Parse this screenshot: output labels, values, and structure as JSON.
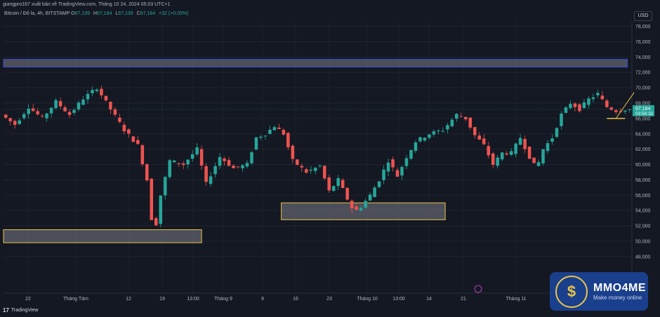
{
  "header": {
    "published": "giangpro167 xuất bản về TradingView.com, Tháng 10 24, 2024 05:03 UTC+1",
    "symbol": "Bitcoin / Đô la, 4h, BITSTAMP",
    "open_label": "O",
    "open": "67,139",
    "high_label": "H",
    "high": "67,184",
    "low_label": "L",
    "low": "67,139",
    "close_label": "C",
    "close": "67,184",
    "change": "+32 (+0.05%)"
  },
  "currency_button": "USD",
  "branding": {
    "tradingview": "TradingView",
    "tv_mark": "17"
  },
  "watermark": {
    "title": "MMO4ME",
    "subtitle": "Make money online",
    "symbol": "$"
  },
  "colors": {
    "up": "#26a69a",
    "down": "#ef5350",
    "zone_border": "#e8c14a",
    "zone_fill": "#7a7d87",
    "resistance_border": "#3d4fd8",
    "arrow": "#e8c14a",
    "background": "#141822"
  },
  "chart_data": {
    "type": "candlestick",
    "y_unit": "USD",
    "yticks": [
      48000,
      50000,
      52000,
      54000,
      56000,
      58000,
      60000,
      62000,
      64000,
      66000,
      68000,
      70000,
      72000,
      74000,
      76000,
      78000
    ],
    "ytick_labels": [
      "48,000",
      "50,000",
      "52,000",
      "54,000",
      "56,000",
      "58,000",
      "60,000",
      "62,000",
      "64,000",
      "66,000",
      "68,000",
      "70,000",
      "72,000",
      "74,000",
      "76,000",
      "78,000"
    ],
    "xtick_labels": [
      "22",
      "Tháng Tám",
      "12",
      "19",
      "13:00",
      "Tháng 9",
      "9",
      "16",
      "23",
      "Tháng 10",
      "13:00",
      "14",
      "21",
      "Tháng 11"
    ],
    "last_price": "67,184",
    "countdown": "03:56:32",
    "path": [
      [
        0,
        66500
      ],
      [
        3,
        65200
      ],
      [
        6,
        67500
      ],
      [
        9,
        66000
      ],
      [
        12,
        68200
      ],
      [
        15,
        66500
      ],
      [
        18,
        68600
      ],
      [
        21,
        70000
      ],
      [
        24,
        67200
      ],
      [
        27,
        64500
      ],
      [
        30,
        62500
      ],
      [
        32,
        58000
      ],
      [
        33.5,
        50400
      ],
      [
        35,
        56000
      ],
      [
        37,
        60500
      ],
      [
        40,
        60000
      ],
      [
        43,
        62000
      ],
      [
        45,
        57500
      ],
      [
        48,
        61000
      ],
      [
        51,
        59500
      ],
      [
        54,
        60000
      ],
      [
        56,
        63500
      ],
      [
        58,
        64000
      ],
      [
        60,
        65000
      ],
      [
        62,
        64000
      ],
      [
        64,
        60500
      ],
      [
        67,
        59000
      ],
      [
        70,
        59800
      ],
      [
        72,
        56500
      ],
      [
        74,
        58000
      ],
      [
        76,
        55500
      ],
      [
        77.5,
        53800
      ],
      [
        79,
        54500
      ],
      [
        81,
        56000
      ],
      [
        83,
        58000
      ],
      [
        85,
        60500
      ],
      [
        87,
        58500
      ],
      [
        89,
        61000
      ],
      [
        91,
        63000
      ],
      [
        94,
        64000
      ],
      [
        97,
        64500
      ],
      [
        100,
        66500
      ],
      [
        102,
        66000
      ],
      [
        104,
        63800
      ],
      [
        106,
        62500
      ],
      [
        108,
        60000
      ],
      [
        110,
        61500
      ],
      [
        112,
        61500
      ],
      [
        114,
        63500
      ],
      [
        116,
        61000
      ],
      [
        117.5,
        59400
      ],
      [
        119,
        62000
      ],
      [
        121,
        63500
      ],
      [
        123,
        66500
      ],
      [
        125,
        68000
      ],
      [
        127,
        67200
      ],
      [
        129,
        68500
      ],
      [
        131,
        69200
      ],
      [
        133,
        67500
      ],
      [
        135,
        67000
      ],
      [
        137,
        67184
      ]
    ],
    "zones": [
      {
        "label": "resistance",
        "y_top": 73700,
        "y_bottom": 72700,
        "x_start": 0,
        "x_end": 137
      },
      {
        "label": "demand",
        "y_top": 51500,
        "y_bottom": 49800,
        "x_start": 0,
        "x_end": 43.5
      },
      {
        "label": "demand",
        "y_top": 55000,
        "y_bottom": 52800,
        "x_start": 61,
        "x_end": 97
      }
    ],
    "annotation": {
      "type": "arrow",
      "from_bar": 134,
      "from_price": 66000,
      "to_bar": 138,
      "to_price": 69400,
      "base_price": 66000
    }
  }
}
